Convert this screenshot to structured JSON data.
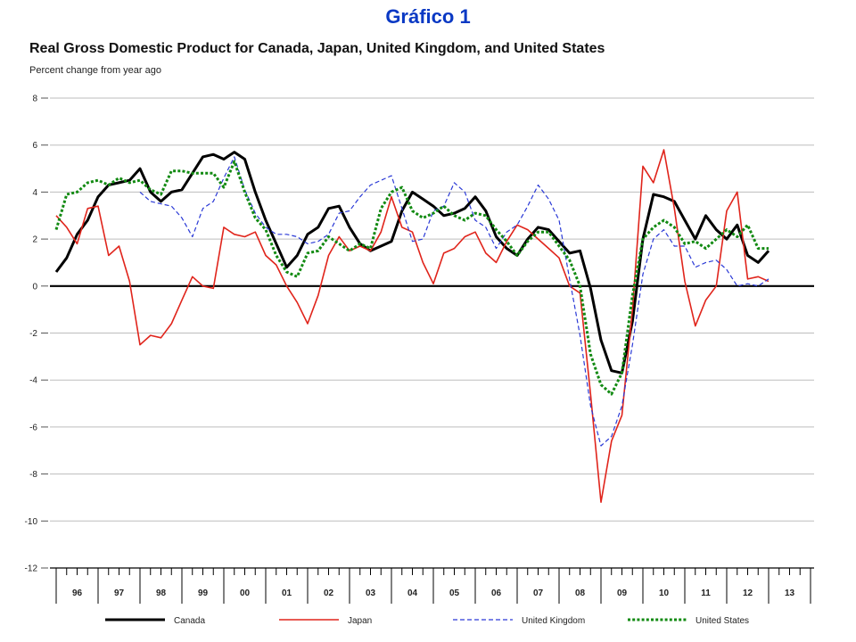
{
  "header": {
    "slide_title": "Gráfico 1"
  },
  "chart_data": {
    "type": "line",
    "title": "Real Gross Domestic Product for Canada, Japan, United Kingdom, and United States",
    "subtitle": "Percent change from year ago",
    "xlabel": "",
    "ylabel": "",
    "x_categories": [
      "96",
      "97",
      "98",
      "99",
      "00",
      "01",
      "02",
      "03",
      "04",
      "05",
      "06",
      "07",
      "08",
      "09",
      "10",
      "11",
      "12",
      "13"
    ],
    "x_range": [
      1996,
      2014
    ],
    "ylim": [
      -12,
      8
    ],
    "y_ticks": [
      8,
      6,
      4,
      2,
      0,
      -2,
      -4,
      -6,
      -8,
      -10,
      -12
    ],
    "grid": true,
    "legend_position": "bottom",
    "series": [
      {
        "name": "Canada",
        "color": "#000000",
        "style": "solid-thick",
        "points": [
          [
            1996.0,
            0.6
          ],
          [
            1996.25,
            1.2
          ],
          [
            1996.5,
            2.2
          ],
          [
            1996.75,
            2.8
          ],
          [
            1997.0,
            3.8
          ],
          [
            1997.25,
            4.3
          ],
          [
            1997.5,
            4.4
          ],
          [
            1997.75,
            4.5
          ],
          [
            1998.0,
            5.0
          ],
          [
            1998.25,
            4.0
          ],
          [
            1998.5,
            3.6
          ],
          [
            1998.75,
            4.0
          ],
          [
            1999.0,
            4.1
          ],
          [
            1999.25,
            4.8
          ],
          [
            1999.5,
            5.5
          ],
          [
            1999.75,
            5.6
          ],
          [
            2000.0,
            5.4
          ],
          [
            2000.25,
            5.7
          ],
          [
            2000.5,
            5.4
          ],
          [
            2000.75,
            4.0
          ],
          [
            2001.0,
            2.8
          ],
          [
            2001.25,
            1.8
          ],
          [
            2001.5,
            0.8
          ],
          [
            2001.75,
            1.3
          ],
          [
            2002.0,
            2.2
          ],
          [
            2002.25,
            2.5
          ],
          [
            2002.5,
            3.3
          ],
          [
            2002.75,
            3.4
          ],
          [
            2003.0,
            2.5
          ],
          [
            2003.25,
            1.8
          ],
          [
            2003.5,
            1.5
          ],
          [
            2003.75,
            1.7
          ],
          [
            2004.0,
            1.9
          ],
          [
            2004.25,
            3.2
          ],
          [
            2004.5,
            4.0
          ],
          [
            2004.75,
            3.7
          ],
          [
            2005.0,
            3.4
          ],
          [
            2005.25,
            3.0
          ],
          [
            2005.5,
            3.1
          ],
          [
            2005.75,
            3.3
          ],
          [
            2006.0,
            3.8
          ],
          [
            2006.25,
            3.2
          ],
          [
            2006.5,
            2.1
          ],
          [
            2006.75,
            1.6
          ],
          [
            2007.0,
            1.3
          ],
          [
            2007.25,
            2.0
          ],
          [
            2007.5,
            2.5
          ],
          [
            2007.75,
            2.4
          ],
          [
            2008.0,
            1.9
          ],
          [
            2008.25,
            1.4
          ],
          [
            2008.5,
            1.5
          ],
          [
            2008.75,
            -0.1
          ],
          [
            2009.0,
            -2.3
          ],
          [
            2009.25,
            -3.6
          ],
          [
            2009.5,
            -3.7
          ],
          [
            2009.75,
            -1.5
          ],
          [
            2010.0,
            2.0
          ],
          [
            2010.25,
            3.9
          ],
          [
            2010.5,
            3.8
          ],
          [
            2010.75,
            3.6
          ],
          [
            2011.0,
            2.8
          ],
          [
            2011.25,
            2.0
          ],
          [
            2011.5,
            3.0
          ],
          [
            2011.75,
            2.4
          ],
          [
            2012.0,
            2.0
          ],
          [
            2012.25,
            2.6
          ],
          [
            2012.5,
            1.3
          ],
          [
            2012.75,
            1.0
          ],
          [
            2013.0,
            1.5
          ]
        ]
      },
      {
        "name": "Japan",
        "color": "#e0241b",
        "style": "solid",
        "points": [
          [
            1996.0,
            3.0
          ],
          [
            1996.25,
            2.5
          ],
          [
            1996.5,
            1.8
          ],
          [
            1996.75,
            3.3
          ],
          [
            1997.0,
            3.4
          ],
          [
            1997.25,
            1.3
          ],
          [
            1997.5,
            1.7
          ],
          [
            1997.75,
            0.2
          ],
          [
            1998.0,
            -2.5
          ],
          [
            1998.25,
            -2.1
          ],
          [
            1998.5,
            -2.2
          ],
          [
            1998.75,
            -1.6
          ],
          [
            1999.0,
            -0.6
          ],
          [
            1999.25,
            0.4
          ],
          [
            1999.5,
            0.0
          ],
          [
            1999.75,
            -0.1
          ],
          [
            2000.0,
            2.5
          ],
          [
            2000.25,
            2.2
          ],
          [
            2000.5,
            2.1
          ],
          [
            2000.75,
            2.3
          ],
          [
            2001.0,
            1.3
          ],
          [
            2001.25,
            0.9
          ],
          [
            2001.5,
            0.0
          ],
          [
            2001.75,
            -0.7
          ],
          [
            2002.0,
            -1.6
          ],
          [
            2002.25,
            -0.4
          ],
          [
            2002.5,
            1.3
          ],
          [
            2002.75,
            2.1
          ],
          [
            2003.0,
            1.5
          ],
          [
            2003.25,
            1.7
          ],
          [
            2003.5,
            1.5
          ],
          [
            2003.75,
            2.3
          ],
          [
            2004.0,
            3.8
          ],
          [
            2004.25,
            2.5
          ],
          [
            2004.5,
            2.3
          ],
          [
            2004.75,
            1.0
          ],
          [
            2005.0,
            0.1
          ],
          [
            2005.25,
            1.4
          ],
          [
            2005.5,
            1.6
          ],
          [
            2005.75,
            2.1
          ],
          [
            2006.0,
            2.3
          ],
          [
            2006.25,
            1.4
          ],
          [
            2006.5,
            1.0
          ],
          [
            2006.75,
            1.9
          ],
          [
            2007.0,
            2.6
          ],
          [
            2007.25,
            2.4
          ],
          [
            2007.5,
            2.0
          ],
          [
            2007.75,
            1.6
          ],
          [
            2008.0,
            1.2
          ],
          [
            2008.25,
            0.0
          ],
          [
            2008.5,
            -0.3
          ],
          [
            2008.75,
            -4.6
          ],
          [
            2009.0,
            -9.2
          ],
          [
            2009.25,
            -6.6
          ],
          [
            2009.5,
            -5.5
          ],
          [
            2009.75,
            -1.0
          ],
          [
            2010.0,
            5.1
          ],
          [
            2010.25,
            4.4
          ],
          [
            2010.5,
            5.8
          ],
          [
            2010.75,
            3.3
          ],
          [
            2011.0,
            0.2
          ],
          [
            2011.25,
            -1.7
          ],
          [
            2011.5,
            -0.6
          ],
          [
            2011.75,
            0.0
          ],
          [
            2012.0,
            3.2
          ],
          [
            2012.25,
            4.0
          ],
          [
            2012.5,
            0.3
          ],
          [
            2012.75,
            0.4
          ],
          [
            2013.0,
            0.2
          ]
        ]
      },
      {
        "name": "United Kingdom",
        "color": "#2a39d6",
        "style": "dashed",
        "points": [
          [
            1998.0,
            4.0
          ],
          [
            1998.25,
            3.6
          ],
          [
            1998.5,
            3.5
          ],
          [
            1998.75,
            3.4
          ],
          [
            1999.0,
            2.9
          ],
          [
            1999.25,
            2.1
          ],
          [
            1999.5,
            3.3
          ],
          [
            1999.75,
            3.6
          ],
          [
            2000.0,
            4.6
          ],
          [
            2000.25,
            5.5
          ],
          [
            2000.5,
            4.1
          ],
          [
            2000.75,
            3.1
          ],
          [
            2001.0,
            2.5
          ],
          [
            2001.25,
            2.2
          ],
          [
            2001.5,
            2.2
          ],
          [
            2001.75,
            2.1
          ],
          [
            2002.0,
            1.8
          ],
          [
            2002.25,
            1.9
          ],
          [
            2002.5,
            2.2
          ],
          [
            2002.75,
            3.1
          ],
          [
            2003.0,
            3.2
          ],
          [
            2003.25,
            3.8
          ],
          [
            2003.5,
            4.3
          ],
          [
            2003.75,
            4.5
          ],
          [
            2004.0,
            4.7
          ],
          [
            2004.25,
            3.3
          ],
          [
            2004.5,
            1.9
          ],
          [
            2004.75,
            2.0
          ],
          [
            2005.0,
            3.2
          ],
          [
            2005.25,
            3.4
          ],
          [
            2005.5,
            4.4
          ],
          [
            2005.75,
            4.0
          ],
          [
            2006.0,
            2.8
          ],
          [
            2006.25,
            2.5
          ],
          [
            2006.5,
            1.6
          ],
          [
            2006.75,
            2.3
          ],
          [
            2007.0,
            2.6
          ],
          [
            2007.25,
            3.4
          ],
          [
            2007.5,
            4.3
          ],
          [
            2007.75,
            3.7
          ],
          [
            2008.0,
            2.8
          ],
          [
            2008.25,
            0.3
          ],
          [
            2008.5,
            -2.1
          ],
          [
            2008.75,
            -5.1
          ],
          [
            2009.0,
            -6.8
          ],
          [
            2009.25,
            -6.4
          ],
          [
            2009.5,
            -5.1
          ],
          [
            2009.75,
            -2.5
          ],
          [
            2010.0,
            0.5
          ],
          [
            2010.25,
            2.0
          ],
          [
            2010.5,
            2.4
          ],
          [
            2010.75,
            1.7
          ],
          [
            2011.0,
            1.7
          ],
          [
            2011.25,
            0.8
          ],
          [
            2011.5,
            1.0
          ],
          [
            2011.75,
            1.1
          ],
          [
            2012.0,
            0.7
          ],
          [
            2012.25,
            0.0
          ],
          [
            2012.5,
            0.1
          ],
          [
            2012.75,
            0.0
          ],
          [
            2013.0,
            0.3
          ]
        ]
      },
      {
        "name": "United States",
        "color": "#128a12",
        "style": "dotted",
        "points": [
          [
            1996.0,
            2.4
          ],
          [
            1996.25,
            3.9
          ],
          [
            1996.5,
            4.0
          ],
          [
            1996.75,
            4.4
          ],
          [
            1997.0,
            4.5
          ],
          [
            1997.25,
            4.3
          ],
          [
            1997.5,
            4.6
          ],
          [
            1997.75,
            4.4
          ],
          [
            1998.0,
            4.5
          ],
          [
            1998.25,
            4.1
          ],
          [
            1998.5,
            3.9
          ],
          [
            1998.75,
            4.9
          ],
          [
            1999.0,
            4.9
          ],
          [
            1999.25,
            4.8
          ],
          [
            1999.5,
            4.8
          ],
          [
            1999.75,
            4.8
          ],
          [
            2000.0,
            4.2
          ],
          [
            2000.25,
            5.3
          ],
          [
            2000.5,
            4.0
          ],
          [
            2000.75,
            2.9
          ],
          [
            2001.0,
            2.4
          ],
          [
            2001.25,
            1.3
          ],
          [
            2001.5,
            0.6
          ],
          [
            2001.75,
            0.4
          ],
          [
            2002.0,
            1.4
          ],
          [
            2002.25,
            1.5
          ],
          [
            2002.5,
            2.1
          ],
          [
            2002.75,
            1.8
          ],
          [
            2003.0,
            1.5
          ],
          [
            2003.25,
            1.8
          ],
          [
            2003.5,
            1.6
          ],
          [
            2003.75,
            3.3
          ],
          [
            2004.0,
            4.0
          ],
          [
            2004.25,
            4.2
          ],
          [
            2004.5,
            3.2
          ],
          [
            2004.75,
            2.9
          ],
          [
            2005.0,
            3.1
          ],
          [
            2005.25,
            3.4
          ],
          [
            2005.5,
            3.0
          ],
          [
            2005.75,
            2.8
          ],
          [
            2006.0,
            3.1
          ],
          [
            2006.25,
            3.0
          ],
          [
            2006.5,
            2.4
          ],
          [
            2006.75,
            1.9
          ],
          [
            2007.0,
            1.3
          ],
          [
            2007.25,
            1.9
          ],
          [
            2007.5,
            2.3
          ],
          [
            2007.75,
            2.3
          ],
          [
            2008.0,
            1.7
          ],
          [
            2008.25,
            1.1
          ],
          [
            2008.5,
            0.0
          ],
          [
            2008.75,
            -2.9
          ],
          [
            2009.0,
            -4.2
          ],
          [
            2009.25,
            -4.6
          ],
          [
            2009.5,
            -3.7
          ],
          [
            2009.75,
            -0.4
          ],
          [
            2010.0,
            2.0
          ],
          [
            2010.25,
            2.5
          ],
          [
            2010.5,
            2.8
          ],
          [
            2010.75,
            2.5
          ],
          [
            2011.0,
            1.8
          ],
          [
            2011.25,
            1.9
          ],
          [
            2011.5,
            1.6
          ],
          [
            2011.75,
            2.0
          ],
          [
            2012.0,
            2.4
          ],
          [
            2012.25,
            2.1
          ],
          [
            2012.5,
            2.6
          ],
          [
            2012.75,
            1.6
          ],
          [
            2013.0,
            1.6
          ]
        ]
      }
    ]
  }
}
